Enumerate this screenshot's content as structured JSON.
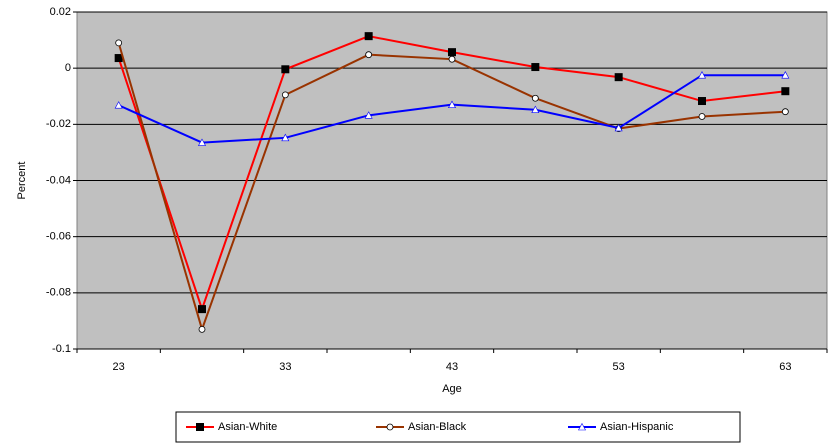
{
  "chart_data": {
    "type": "line",
    "x_label": "Age",
    "y_label": "Percent",
    "categories": [
      "23",
      null,
      "33",
      null,
      "43",
      null,
      "53",
      null,
      "63"
    ],
    "series": [
      {
        "name": "Asian-White",
        "color": "#ff0000",
        "marker_color": "#000000",
        "marker": "square",
        "values": [
          0.0036,
          -0.0858,
          -0.0004,
          0.0114,
          0.0057,
          0.0004,
          -0.0032,
          -0.0117,
          -0.0082
        ]
      },
      {
        "name": "Asian-Black",
        "color": "#993300",
        "marker_color": "#ffffff",
        "marker": "circle",
        "values": [
          0.009,
          -0.093,
          -0.0095,
          0.0048,
          0.0032,
          -0.0107,
          -0.0215,
          -0.0172,
          -0.0155
        ]
      },
      {
        "name": "Asian-Hispanic",
        "color": "#0000ff",
        "marker_color": "#ffffff",
        "marker": "triangle",
        "values": [
          -0.0132,
          -0.0265,
          -0.0248,
          -0.0168,
          -0.013,
          -0.0148,
          -0.0213,
          -0.0025,
          -0.0025
        ]
      }
    ],
    "ylim": [
      -0.1,
      0.02
    ],
    "yticks": [
      -0.1,
      -0.08,
      -0.06,
      -0.04,
      -0.02,
      0,
      0.02
    ],
    "grid": true,
    "plot_background": "#c0c0c0",
    "legend": "bottom"
  }
}
